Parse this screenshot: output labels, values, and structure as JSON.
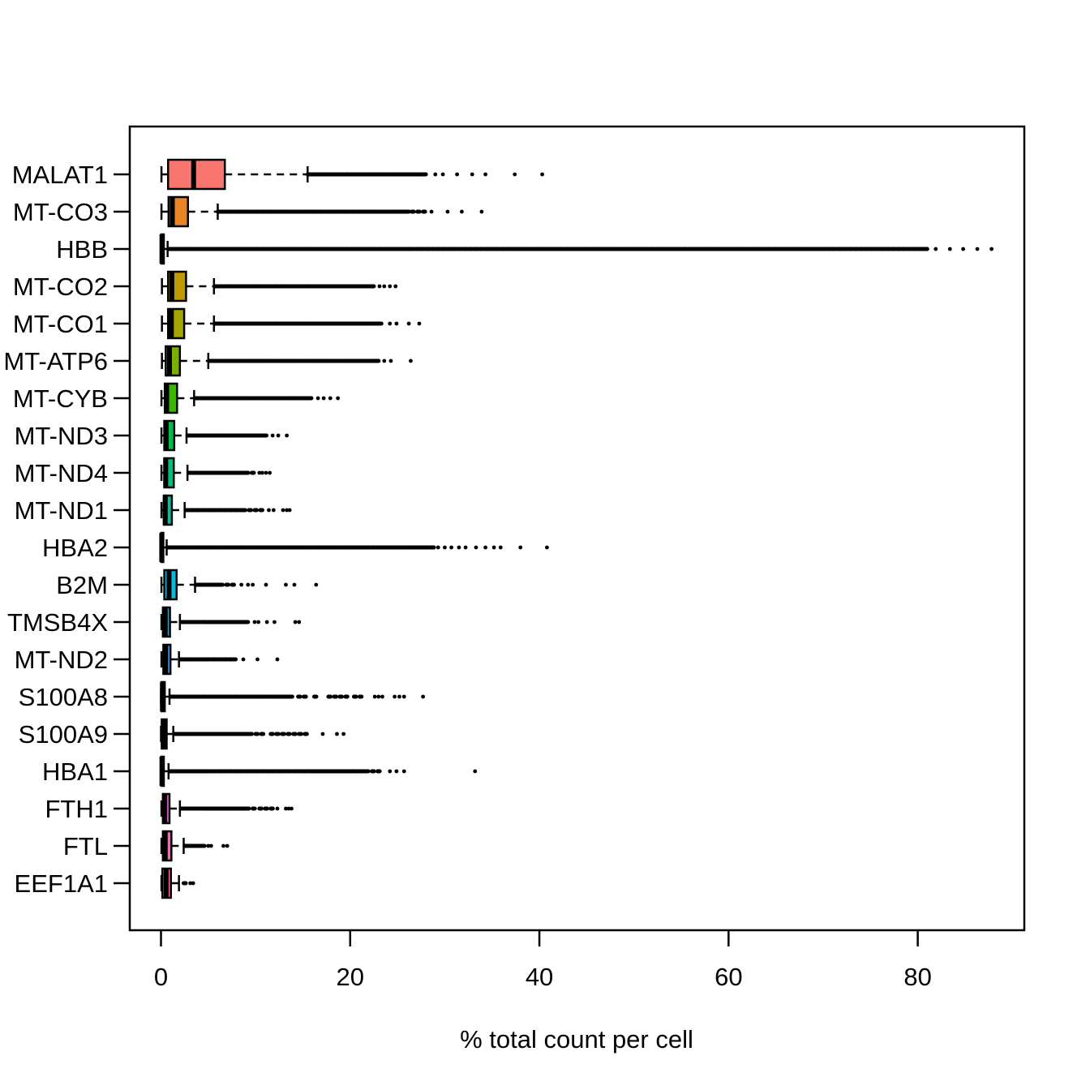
{
  "figure": {
    "background": "#FFFFFF",
    "axis_color": "#000000",
    "outlier_color": "#000000"
  },
  "chart_data": {
    "type": "boxplot-horizontal",
    "title": "",
    "xlabel": "% total count per cell",
    "ylabel": "",
    "x_ticks": [
      0,
      20,
      40,
      60,
      80
    ],
    "x_range_shown": [
      0,
      91
    ],
    "grid": false,
    "legend": "none",
    "genes": [
      {
        "label": "MALAT1",
        "color": "#F8766D",
        "stats": {
          "lo": 0.05,
          "q1": 0.75,
          "med": 3.45,
          "q3": 6.75,
          "hi": 15.5
        },
        "dense": [
          15.5,
          28.0
        ],
        "speckle": [],
        "dots": [
          29.0,
          29.8,
          31.3,
          32.9,
          34.3,
          37.4,
          40.3
        ]
      },
      {
        "label": "MT-CO3",
        "color": "#E88526",
        "stats": {
          "lo": 0.05,
          "q1": 0.8,
          "med": 1.2,
          "q3": 2.85,
          "hi": 6.0
        },
        "dense": [
          6.0,
          26.2
        ],
        "speckle": [
          [
            26.5,
            28.0
          ]
        ],
        "dots": [
          28.6,
          30.3,
          31.8,
          33.9
        ]
      },
      {
        "label": "HBB",
        "color": "#D89000",
        "stats": {
          "lo": 0.0,
          "q1": 0.03,
          "med": 0.1,
          "q3": 0.3,
          "hi": 0.7
        },
        "dense": [
          0.8,
          81.0
        ],
        "speckle": [],
        "dots": [
          81.9,
          83.4,
          84.8,
          86.3,
          87.8
        ]
      },
      {
        "label": "MT-CO2",
        "color": "#C09B00",
        "stats": {
          "lo": 0.1,
          "q1": 0.75,
          "med": 1.15,
          "q3": 2.65,
          "hi": 5.6
        },
        "dense": [
          5.7,
          22.5
        ],
        "speckle": [],
        "dots": [
          23.1,
          23.6,
          24.2,
          24.8
        ]
      },
      {
        "label": "MT-CO1",
        "color": "#A3A500",
        "stats": {
          "lo": 0.1,
          "q1": 0.75,
          "med": 1.1,
          "q3": 2.45,
          "hi": 5.6
        },
        "dense": [
          5.7,
          23.3
        ],
        "speckle": [],
        "dots": [
          24.2,
          24.9,
          26.2,
          27.3
        ]
      },
      {
        "label": "MT-ATP6",
        "color": "#7CAE00",
        "stats": {
          "lo": 0.1,
          "q1": 0.5,
          "med": 0.9,
          "q3": 2.0,
          "hi": 5.0
        },
        "dense": [
          5.1,
          23.0
        ],
        "speckle": [],
        "dots": [
          23.6,
          24.3,
          26.4
        ]
      },
      {
        "label": "MT-CYB",
        "color": "#39B600",
        "stats": {
          "lo": 0.05,
          "q1": 0.4,
          "med": 0.6,
          "q3": 1.7,
          "hi": 3.5
        },
        "dense": [
          3.6,
          15.9
        ],
        "speckle": [],
        "dots": [
          16.6,
          17.2,
          17.9,
          18.7
        ]
      },
      {
        "label": "MT-ND3",
        "color": "#00BB4E",
        "stats": {
          "lo": 0.05,
          "q1": 0.35,
          "med": 0.55,
          "q3": 1.4,
          "hi": 2.7
        },
        "dense": [
          2.8,
          11.2
        ],
        "speckle": [],
        "dots": [
          11.8,
          12.4,
          13.3
        ]
      },
      {
        "label": "MT-ND4",
        "color": "#00BF7D",
        "stats": {
          "lo": 0.05,
          "q1": 0.35,
          "med": 0.5,
          "q3": 1.35,
          "hi": 2.8
        },
        "dense": [
          2.9,
          9.0
        ],
        "speckle": [
          [
            9.0,
            9.9
          ]
        ],
        "dots": [
          10.4,
          10.7,
          11.1,
          11.5
        ]
      },
      {
        "label": "MT-ND1",
        "color": "#00C1A3",
        "stats": {
          "lo": 0.05,
          "q1": 0.3,
          "med": 0.45,
          "q3": 1.15,
          "hi": 2.5
        },
        "dense": [
          2.6,
          8.7
        ],
        "speckle": [
          [
            8.7,
            10.8
          ]
        ],
        "dots": [
          11.4,
          11.9,
          12.9,
          13.3,
          13.6
        ]
      },
      {
        "label": "HBA2",
        "color": "#00BFC4",
        "stats": {
          "lo": 0.0,
          "q1": 0.03,
          "med": 0.08,
          "q3": 0.25,
          "hi": 0.6
        },
        "dense": [
          0.7,
          28.9
        ],
        "speckle": [],
        "dots": [
          29.3,
          30.0,
          30.7,
          31.5,
          32.2,
          33.3,
          34.3,
          35.2,
          35.9,
          38.0,
          40.8
        ]
      },
      {
        "label": "B2M",
        "color": "#00BAE0",
        "stats": {
          "lo": 0.05,
          "q1": 0.35,
          "med": 0.85,
          "q3": 1.65,
          "hi": 3.6
        },
        "dense": [
          3.7,
          6.3
        ],
        "speckle": [
          [
            6.3,
            8.1
          ]
        ],
        "dots": [
          8.5,
          9.2,
          9.7,
          11.1,
          13.2,
          14.1,
          16.4
        ]
      },
      {
        "label": "TMSB4X",
        "color": "#00B0F6",
        "stats": {
          "lo": 0.05,
          "q1": 0.2,
          "med": 0.45,
          "q3": 0.95,
          "hi": 2.0
        },
        "dense": [
          2.1,
          9.2
        ],
        "speckle": [],
        "dots": [
          9.9,
          10.3,
          11.2,
          12.0,
          14.2,
          14.6
        ]
      },
      {
        "label": "MT-ND2",
        "color": "#35A2FF",
        "stats": {
          "lo": 0.05,
          "q1": 0.25,
          "med": 0.5,
          "q3": 1.0,
          "hi": 1.9
        },
        "dense": [
          2.0,
          7.9
        ],
        "speckle": [],
        "dots": [
          8.7,
          10.2,
          12.3
        ]
      },
      {
        "label": "S100A8",
        "color": "#9590FF",
        "stats": {
          "lo": 0.0,
          "q1": 0.05,
          "med": 0.15,
          "q3": 0.4,
          "hi": 0.9
        },
        "dense": [
          1.0,
          13.9
        ],
        "speckle": [
          [
            14.5,
            15.4
          ],
          [
            16.2,
            16.8
          ],
          [
            17.7,
            19.7
          ],
          [
            20.4,
            21.2
          ]
        ],
        "dots": [
          22.6,
          23.0,
          23.4,
          24.7,
          25.2,
          25.7,
          27.7
        ]
      },
      {
        "label": "S100A9",
        "color": "#C77CFF",
        "stats": {
          "lo": 0.0,
          "q1": 0.08,
          "med": 0.25,
          "q3": 0.6,
          "hi": 1.3
        },
        "dense": [
          1.4,
          9.6
        ],
        "speckle": [
          [
            10.0,
            11.0
          ],
          [
            11.6,
            13.6
          ],
          [
            14.0,
            15.5
          ]
        ],
        "dots": [
          17.1,
          18.6,
          19.3
        ]
      },
      {
        "label": "HBA1",
        "color": "#E76BF3",
        "stats": {
          "lo": 0.0,
          "q1": 0.03,
          "med": 0.1,
          "q3": 0.3,
          "hi": 0.8
        },
        "dense": [
          0.9,
          21.7
        ],
        "speckle": [
          [
            21.7,
            23.5
          ]
        ],
        "dots": [
          24.2,
          24.9,
          25.7,
          33.2
        ]
      },
      {
        "label": "FTH1",
        "color": "#FA62DB",
        "stats": {
          "lo": 0.05,
          "q1": 0.2,
          "med": 0.4,
          "q3": 0.9,
          "hi": 2.0
        },
        "dense": [
          2.1,
          9.3
        ],
        "speckle": [
          [
            9.7,
            10.0
          ],
          [
            10.4,
            11.9
          ]
        ],
        "dots": [
          12.3,
          13.2,
          13.5,
          13.8
        ]
      },
      {
        "label": "FTL",
        "color": "#FF62BC",
        "stats": {
          "lo": 0.05,
          "q1": 0.2,
          "med": 0.45,
          "q3": 1.1,
          "hi": 2.4
        },
        "dense": [
          2.5,
          4.6
        ],
        "speckle": [],
        "dots": [
          5.0,
          5.3,
          6.6,
          7.0
        ]
      },
      {
        "label": "EEF1A1",
        "color": "#FF6A98",
        "stats": {
          "lo": 0.05,
          "q1": 0.15,
          "med": 0.55,
          "q3": 1.05,
          "hi": 1.9
        },
        "dense": null,
        "speckle": [
          [
            2.4,
            2.7
          ]
        ],
        "dots": [
          3.1,
          3.4
        ]
      }
    ]
  }
}
